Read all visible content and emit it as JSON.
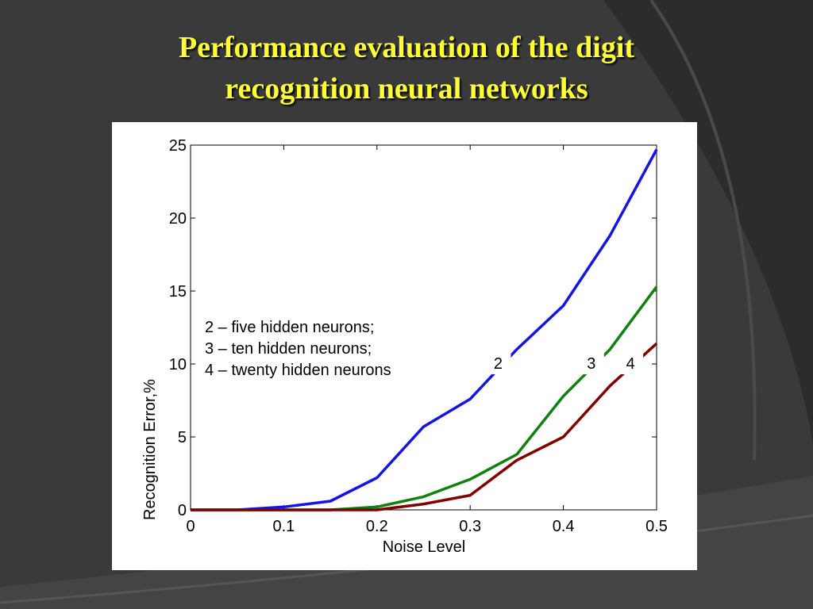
{
  "slide": {
    "title_line1": "Performance evaluation of the digit",
    "title_line2": "recognition neural networks"
  },
  "colors": {
    "background": "#3a3a3a",
    "title": "#ffff33",
    "series_2": "#1414e6",
    "series_3": "#108010",
    "series_4": "#800000"
  },
  "chart_data": {
    "type": "line",
    "title": "",
    "xlabel": "Noise Level",
    "ylabel": "Recognition Error,%",
    "xlim": [
      0,
      0.5
    ],
    "ylim": [
      0,
      25
    ],
    "xticks": [
      0,
      0.1,
      0.2,
      0.3,
      0.4,
      0.5
    ],
    "xtick_labels": [
      "0",
      "0.1",
      "0.2",
      "0.3",
      "0.4",
      "0.5"
    ],
    "yticks": [
      0,
      5,
      10,
      15,
      20,
      25
    ],
    "ytick_labels": [
      "0",
      "5",
      "10",
      "15",
      "20",
      "25"
    ],
    "grid": false,
    "x": [
      0,
      0.05,
      0.1,
      0.15,
      0.2,
      0.25,
      0.3,
      0.35,
      0.4,
      0.45,
      0.5
    ],
    "series": [
      {
        "name": "2",
        "color": "#1414e6",
        "values": [
          0,
          0,
          0.2,
          0.6,
          2.2,
          5.7,
          7.6,
          11.0,
          14.0,
          18.8,
          24.7
        ]
      },
      {
        "name": "3",
        "color": "#108010",
        "values": [
          0,
          0,
          0,
          0,
          0.2,
          0.9,
          2.1,
          3.8,
          7.8,
          11.0,
          15.3
        ]
      },
      {
        "name": "4",
        "color": "#800000",
        "values": [
          0,
          0,
          0,
          0,
          0,
          0.4,
          1.0,
          3.4,
          5.0,
          8.5,
          11.4
        ]
      }
    ],
    "annotations": {
      "legend_lines": [
        "2 – five hidden neurons;",
        "3 – ten hidden neurons;",
        "4 – twenty hidden neurons"
      ],
      "curve_labels": [
        {
          "text": "2",
          "x": 0.33,
          "y": 10
        },
        {
          "text": "3",
          "x": 0.43,
          "y": 10
        },
        {
          "text": "4",
          "x": 0.472,
          "y": 10
        }
      ]
    }
  }
}
